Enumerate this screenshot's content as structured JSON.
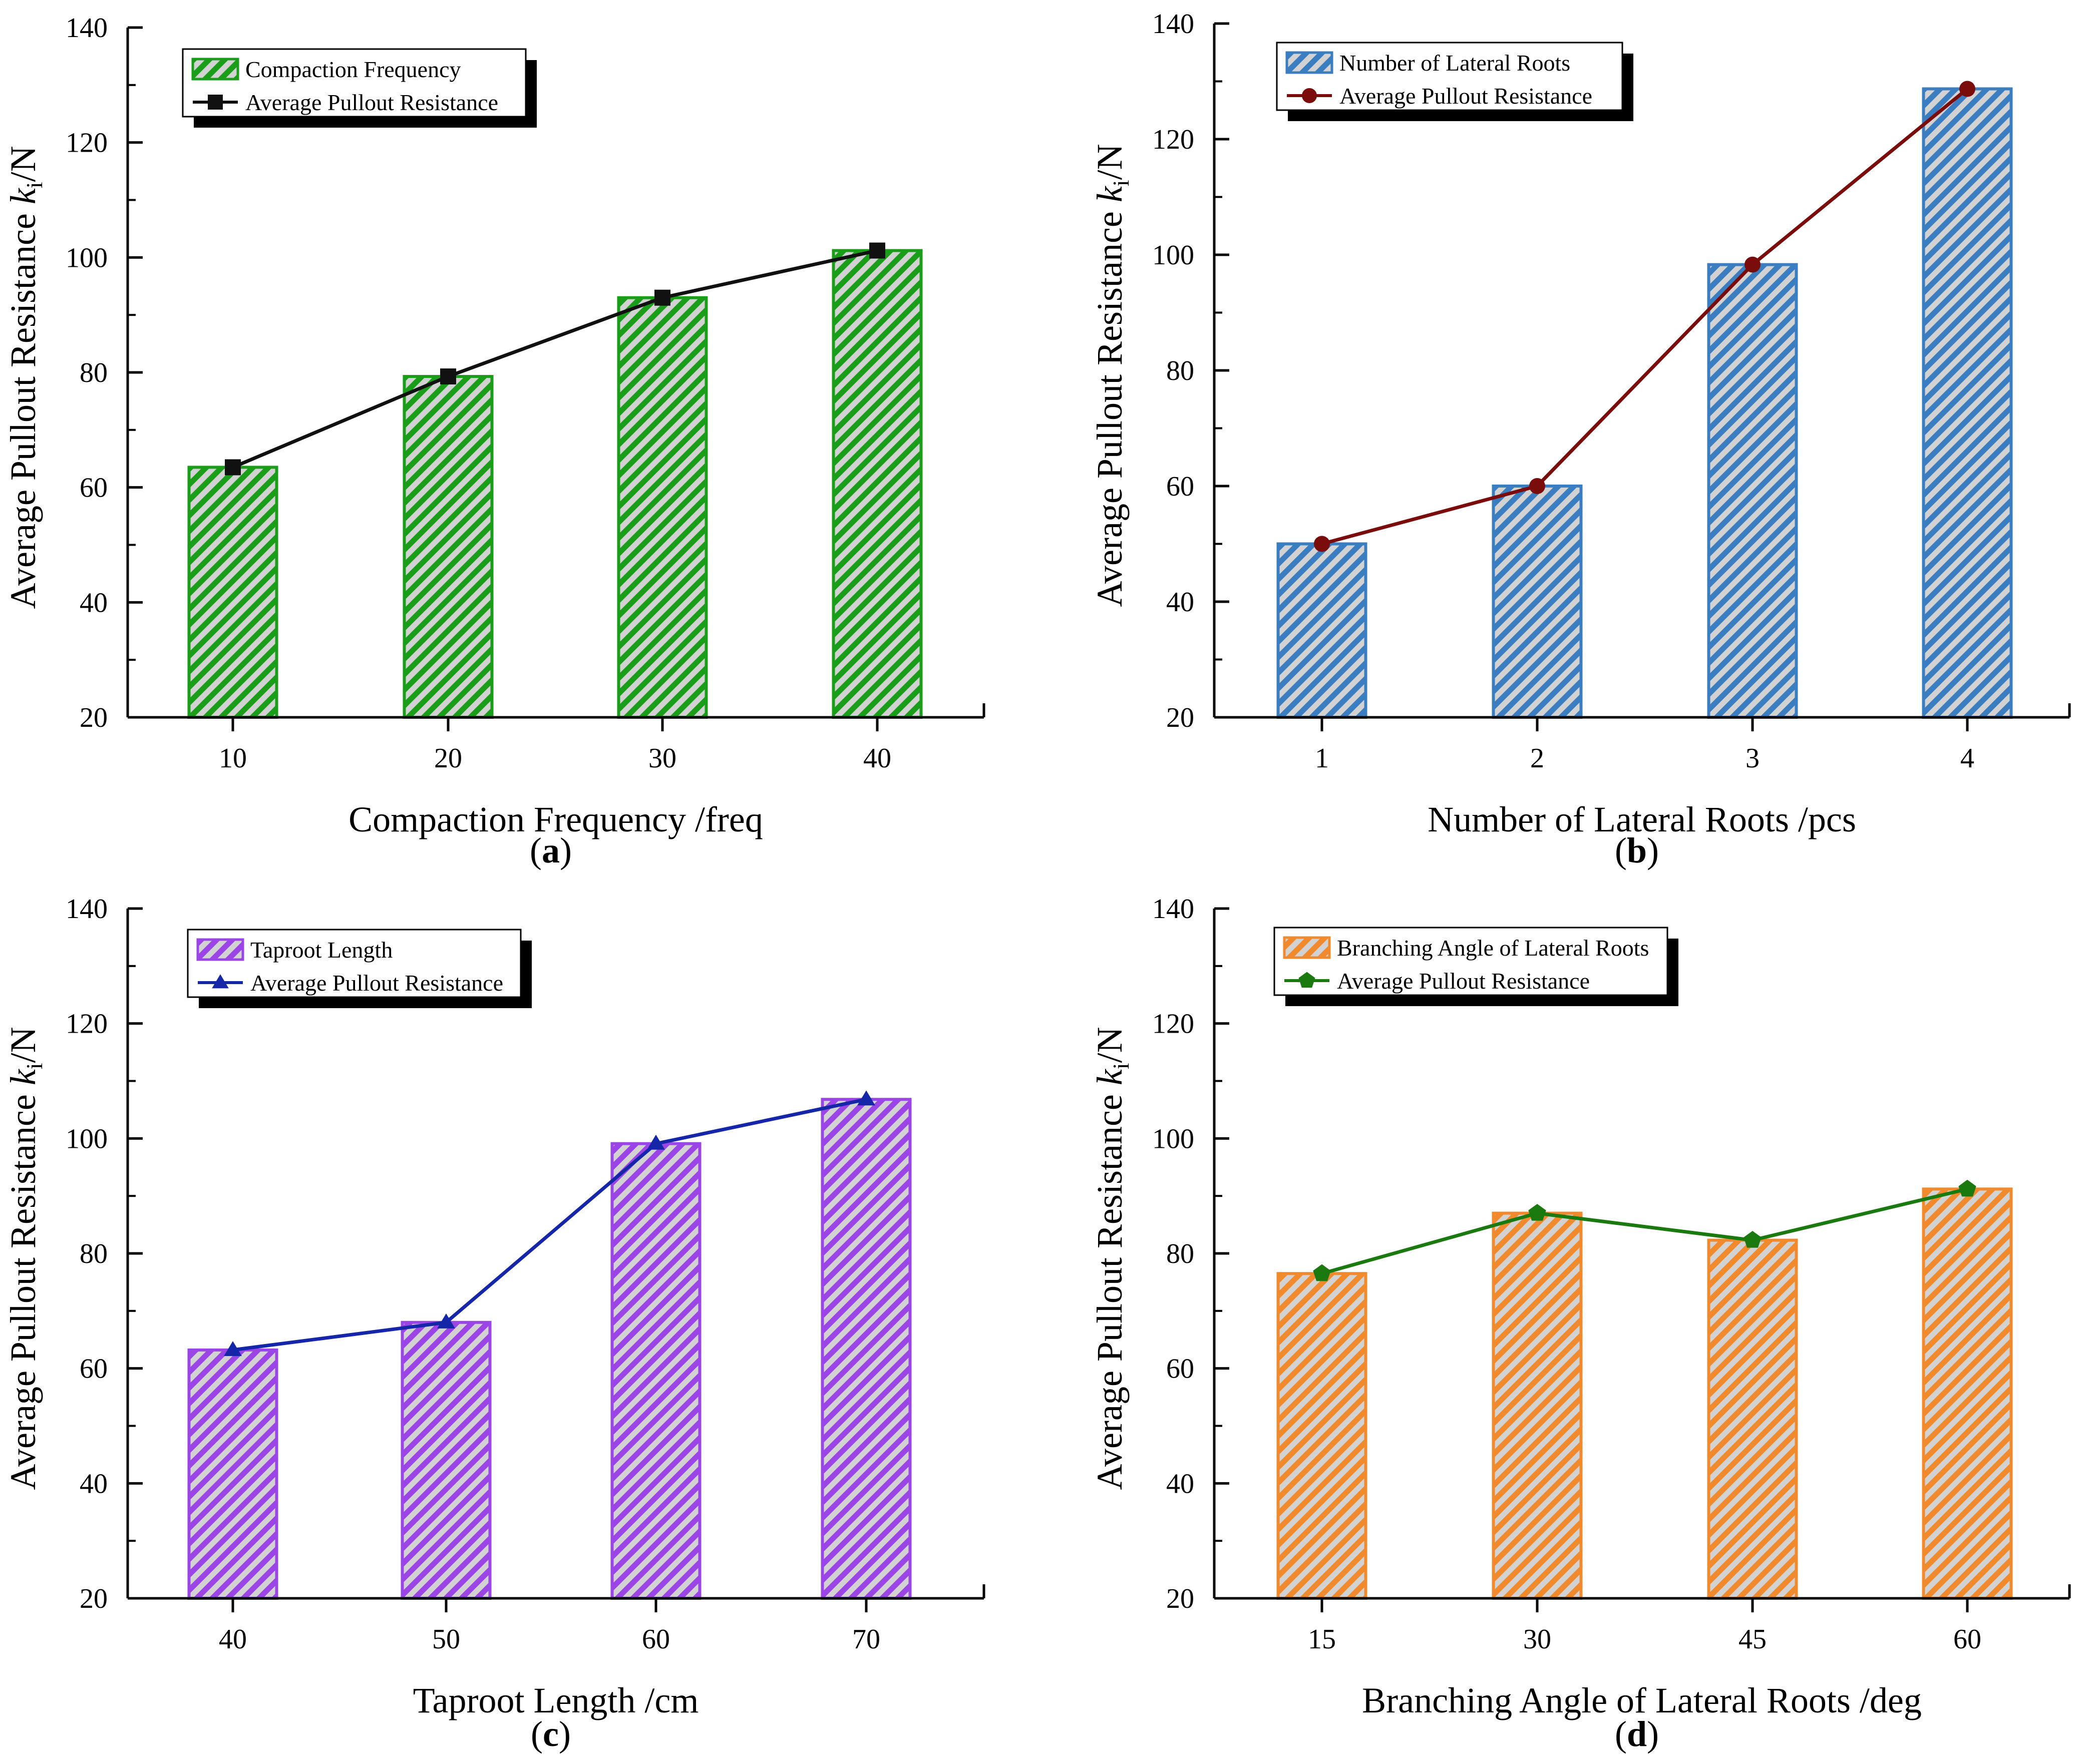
{
  "figure": {
    "y_axis_label": "Average Pullout Resistance",
    "y_axis_var": "k",
    "y_axis_sub": "i",
    "y_axis_unit": "/N",
    "line_series_name": "Average Pullout Resistance"
  },
  "chart_data": [
    {
      "id": "a",
      "type": "bar",
      "panel_label": "a",
      "categories": [
        "10",
        "20",
        "30",
        "40"
      ],
      "values": [
        63.5,
        79.3,
        93.0,
        101.2
      ],
      "line_values": [
        63.5,
        79.3,
        93.0,
        101.2
      ],
      "bar_series_name": "Compaction Frequency",
      "line_series_name": "Average Pullout Resistance",
      "xlabel": "Compaction Frequency /freq",
      "ylabel": "Average Pullout Resistance ki/N",
      "ylim": [
        20,
        140
      ],
      "yticks": [
        20,
        40,
        60,
        80,
        100,
        120,
        140
      ],
      "bar_color": "#1a9e1a",
      "line_color": "#111111",
      "marker": "square"
    },
    {
      "id": "b",
      "type": "bar",
      "panel_label": "b",
      "categories": [
        "1",
        "2",
        "3",
        "4"
      ],
      "values": [
        50.0,
        60.0,
        98.3,
        128.7
      ],
      "line_values": [
        50.0,
        60.0,
        98.3,
        128.7
      ],
      "bar_series_name": "Number of Lateral Roots",
      "line_series_name": "Average Pullout Resistance",
      "xlabel": "Number of Lateral Roots /pcs",
      "ylabel": "Average Pullout Resistance ki/N",
      "ylim": [
        20,
        140
      ],
      "yticks": [
        20,
        40,
        60,
        80,
        100,
        120,
        140
      ],
      "bar_color": "#3a7dc0",
      "line_color": "#7a0c0c",
      "marker": "circle"
    },
    {
      "id": "c",
      "type": "bar",
      "panel_label": "c",
      "categories": [
        "40",
        "50",
        "60",
        "70"
      ],
      "values": [
        63.2,
        68.0,
        99.1,
        106.8
      ],
      "line_values": [
        63.2,
        68.0,
        99.1,
        106.8
      ],
      "bar_series_name": "Taproot Length",
      "line_series_name": "Average Pullout Resistance",
      "xlabel": "Taproot Length /cm",
      "ylabel": "Average Pullout Resistance ki/N",
      "ylim": [
        20,
        140
      ],
      "yticks": [
        20,
        40,
        60,
        80,
        100,
        120,
        140
      ],
      "bar_color": "#9b45e6",
      "line_color": "#1526a8",
      "marker": "triangle"
    },
    {
      "id": "d",
      "type": "bar",
      "panel_label": "d",
      "categories": [
        "15",
        "30",
        "45",
        "60"
      ],
      "values": [
        76.5,
        87.0,
        82.3,
        91.2
      ],
      "line_values": [
        76.5,
        87.0,
        82.3,
        91.2
      ],
      "bar_series_name": "Branching Angle of Lateral Roots",
      "line_series_name": "Average Pullout Resistance",
      "xlabel": "Branching Angle of Lateral Roots /deg",
      "ylabel": "Average Pullout Resistance ki/N",
      "ylim": [
        20,
        140
      ],
      "yticks": [
        20,
        40,
        60,
        80,
        100,
        120,
        140
      ],
      "bar_color": "#f08a2c",
      "line_color": "#1a7a10",
      "marker": "pentagon"
    }
  ]
}
